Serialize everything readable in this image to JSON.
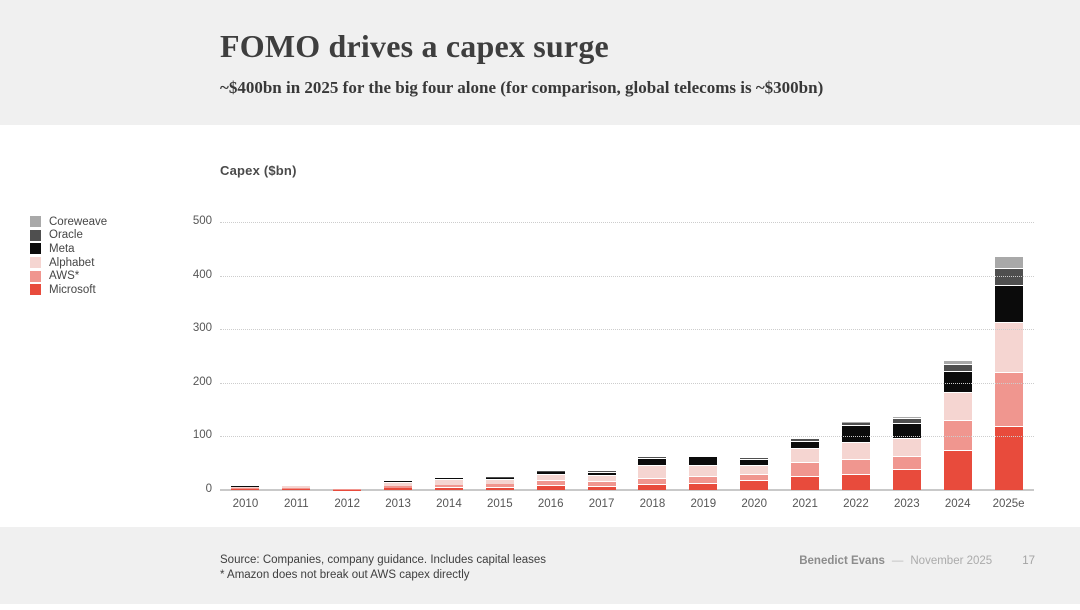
{
  "header": {
    "title": "FOMO drives a capex surge",
    "subtitle": "~$400bn in 2025 for the big four alone (for comparison, global telecoms is ~$300bn)"
  },
  "chart_data": {
    "type": "bar",
    "stacked": true,
    "title": "Capex ($bn)",
    "ylabel": "Capex ($bn)",
    "xlabel": "",
    "ylim": [
      0,
      500
    ],
    "y_ticks": [
      500,
      400,
      300,
      200,
      100,
      0
    ],
    "grid": "horizontal dotted",
    "legend_position": "left",
    "categories": [
      "2010",
      "2011",
      "2012",
      "2013",
      "2014",
      "2015",
      "2016",
      "2017",
      "2018",
      "2019",
      "2020",
      "2021",
      "2022",
      "2023",
      "2024",
      "2025e"
    ],
    "series": [
      {
        "name": "Microsoft",
        "color": "#e84b3c",
        "values": [
          2.0,
          2.3,
          0.6,
          4.0,
          5.0,
          5.9,
          9.1,
          8.0,
          12.0,
          14.0,
          19.0,
          26.0,
          30.0,
          39.0,
          75.0,
          120.0
        ]
      },
      {
        "name": "AWS*",
        "color": "#f0968f",
        "values": [
          1.0,
          1.0,
          0.5,
          3.5,
          4.6,
          4.6,
          10.0,
          9.5,
          10.0,
          11.5,
          11.0,
          27.0,
          27.0,
          24.0,
          56.0,
          100.0
        ]
      },
      {
        "name": "Alphabet",
        "color": "#f5d5d1",
        "values": [
          3.5,
          3.4,
          1.2,
          7.3,
          10.5,
          9.9,
          10.2,
          11.0,
          24.0,
          22.0,
          16.5,
          24.6,
          32.0,
          34.0,
          52.5,
          93.0
        ]
      },
      {
        "name": "Meta",
        "color": "#0b0b0b",
        "values": [
          0.5,
          0.6,
          0.4,
          1.4,
          1.8,
          2.5,
          4.5,
          5.0,
          13.9,
          15.1,
          12.0,
          14.7,
          31.4,
          28.0,
          39.0,
          70.0
        ]
      },
      {
        "name": "Oracle",
        "color": "#4f4f4f",
        "values": [
          0,
          0,
          0,
          0.4,
          0.5,
          0.7,
          1.3,
          1.7,
          1.6,
          1.7,
          1.6,
          2.1,
          4.5,
          8.7,
          12.0,
          31.0
        ]
      },
      {
        "name": "Coreweave",
        "color": "#a9a9a9",
        "values": [
          0,
          0,
          0,
          0,
          0,
          0,
          0,
          0,
          0,
          0,
          0,
          0,
          1.5,
          3.0,
          9.0,
          23.0
        ]
      }
    ],
    "legend_top_to_bottom": [
      "Coreweave",
      "Oracle",
      "Meta",
      "Alphabet",
      "AWS*",
      "Microsoft"
    ]
  },
  "footer": {
    "source_line1": "Source: Companies, company guidance. Includes capital leases",
    "source_line2": "* Amazon does not break out AWS capex directly",
    "author": "Benedict Evans",
    "dash": "—",
    "date": "November 2025",
    "page": "17"
  },
  "colors": {
    "band": "#f0f0f0",
    "gridline": "#cdcdcd",
    "axis": "#c9c9c9",
    "title_text": "#3e3e3e",
    "tick_text": "#565656"
  }
}
